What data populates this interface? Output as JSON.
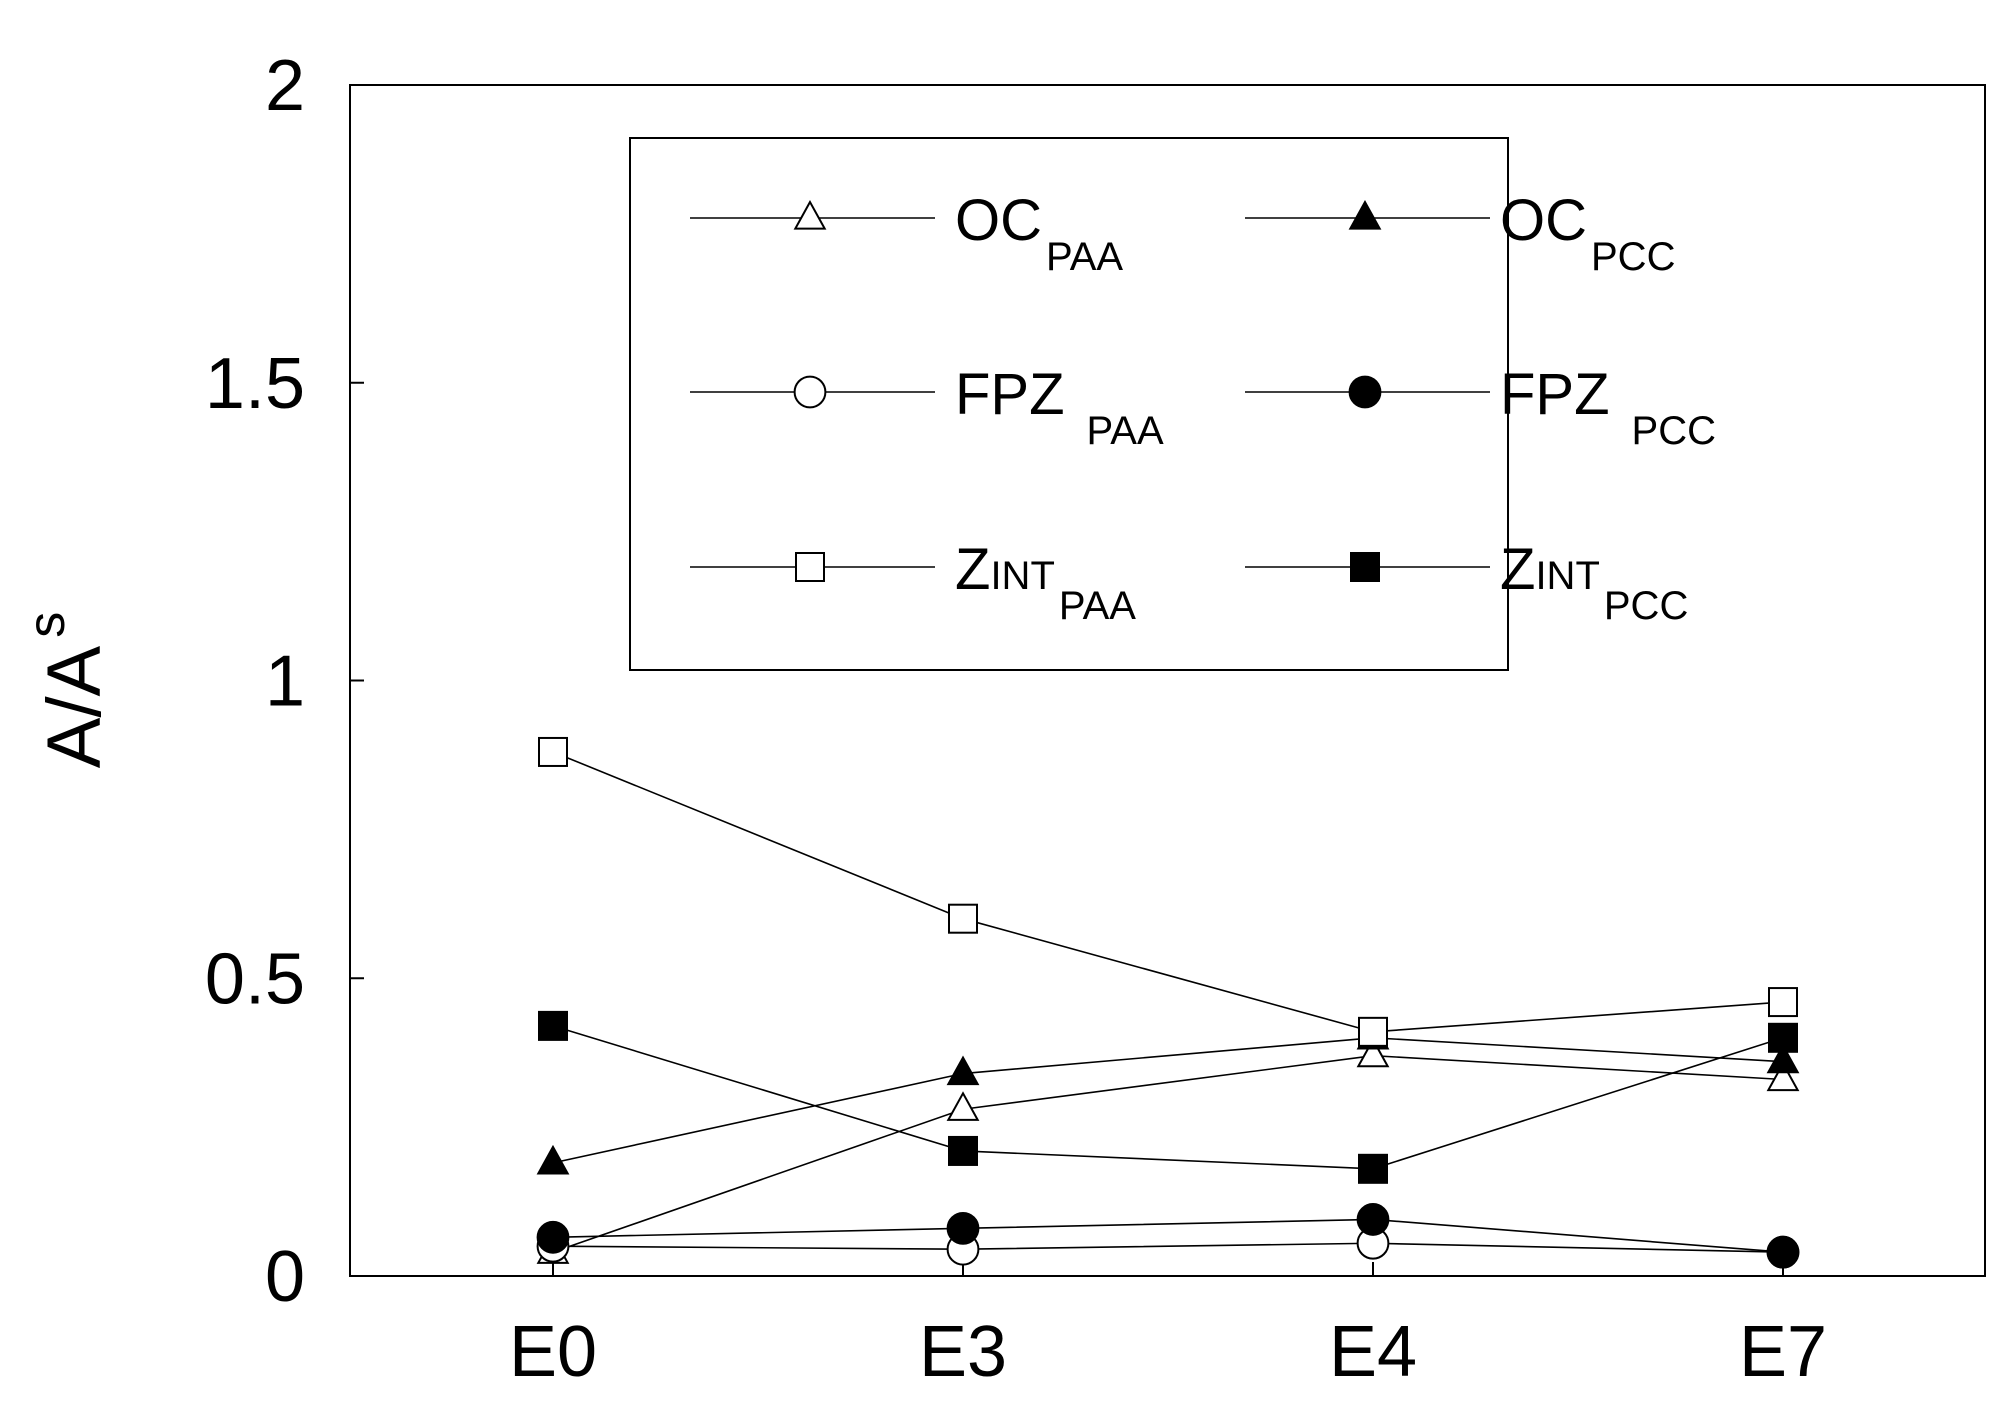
{
  "chart_data": {
    "type": "line",
    "title": "",
    "xlabel": "",
    "ylabel": "A/A",
    "ylabel_sub": "s",
    "categories": [
      "E0",
      "E3",
      "E4",
      "E7"
    ],
    "ylim": [
      0,
      2
    ],
    "yticks": [
      "0",
      "0.5",
      "1",
      "1.5",
      "2"
    ],
    "ytick_values": [
      0,
      0.5,
      1,
      1.5,
      2
    ],
    "grid": false,
    "legend_position": "top-right",
    "series": [
      {
        "name": "OC",
        "sub": "PAA",
        "marker": "triangle",
        "filled": false,
        "values": [
          0.04,
          0.28,
          0.37,
          0.33
        ]
      },
      {
        "name": "OC",
        "sub": "PCC",
        "marker": "triangle",
        "filled": true,
        "values": [
          0.19,
          0.34,
          0.4,
          0.36
        ]
      },
      {
        "name": "FPZ",
        "sub": "PAA",
        "marker": "circle",
        "filled": false,
        "values": [
          0.05,
          0.045,
          0.055,
          0.04
        ]
      },
      {
        "name": "FPZ",
        "sub": "PCC",
        "marker": "circle",
        "filled": true,
        "values": [
          0.065,
          0.08,
          0.095,
          0.04
        ]
      },
      {
        "name": "Z",
        "name_small": "INT",
        "sub": "PAA",
        "marker": "square",
        "filled": false,
        "values": [
          0.88,
          0.6,
          0.41,
          0.46
        ]
      },
      {
        "name": "Z",
        "name_small": "INT",
        "sub": "PCC",
        "marker": "square",
        "filled": true,
        "values": [
          0.42,
          0.21,
          0.18,
          0.4
        ]
      }
    ]
  }
}
